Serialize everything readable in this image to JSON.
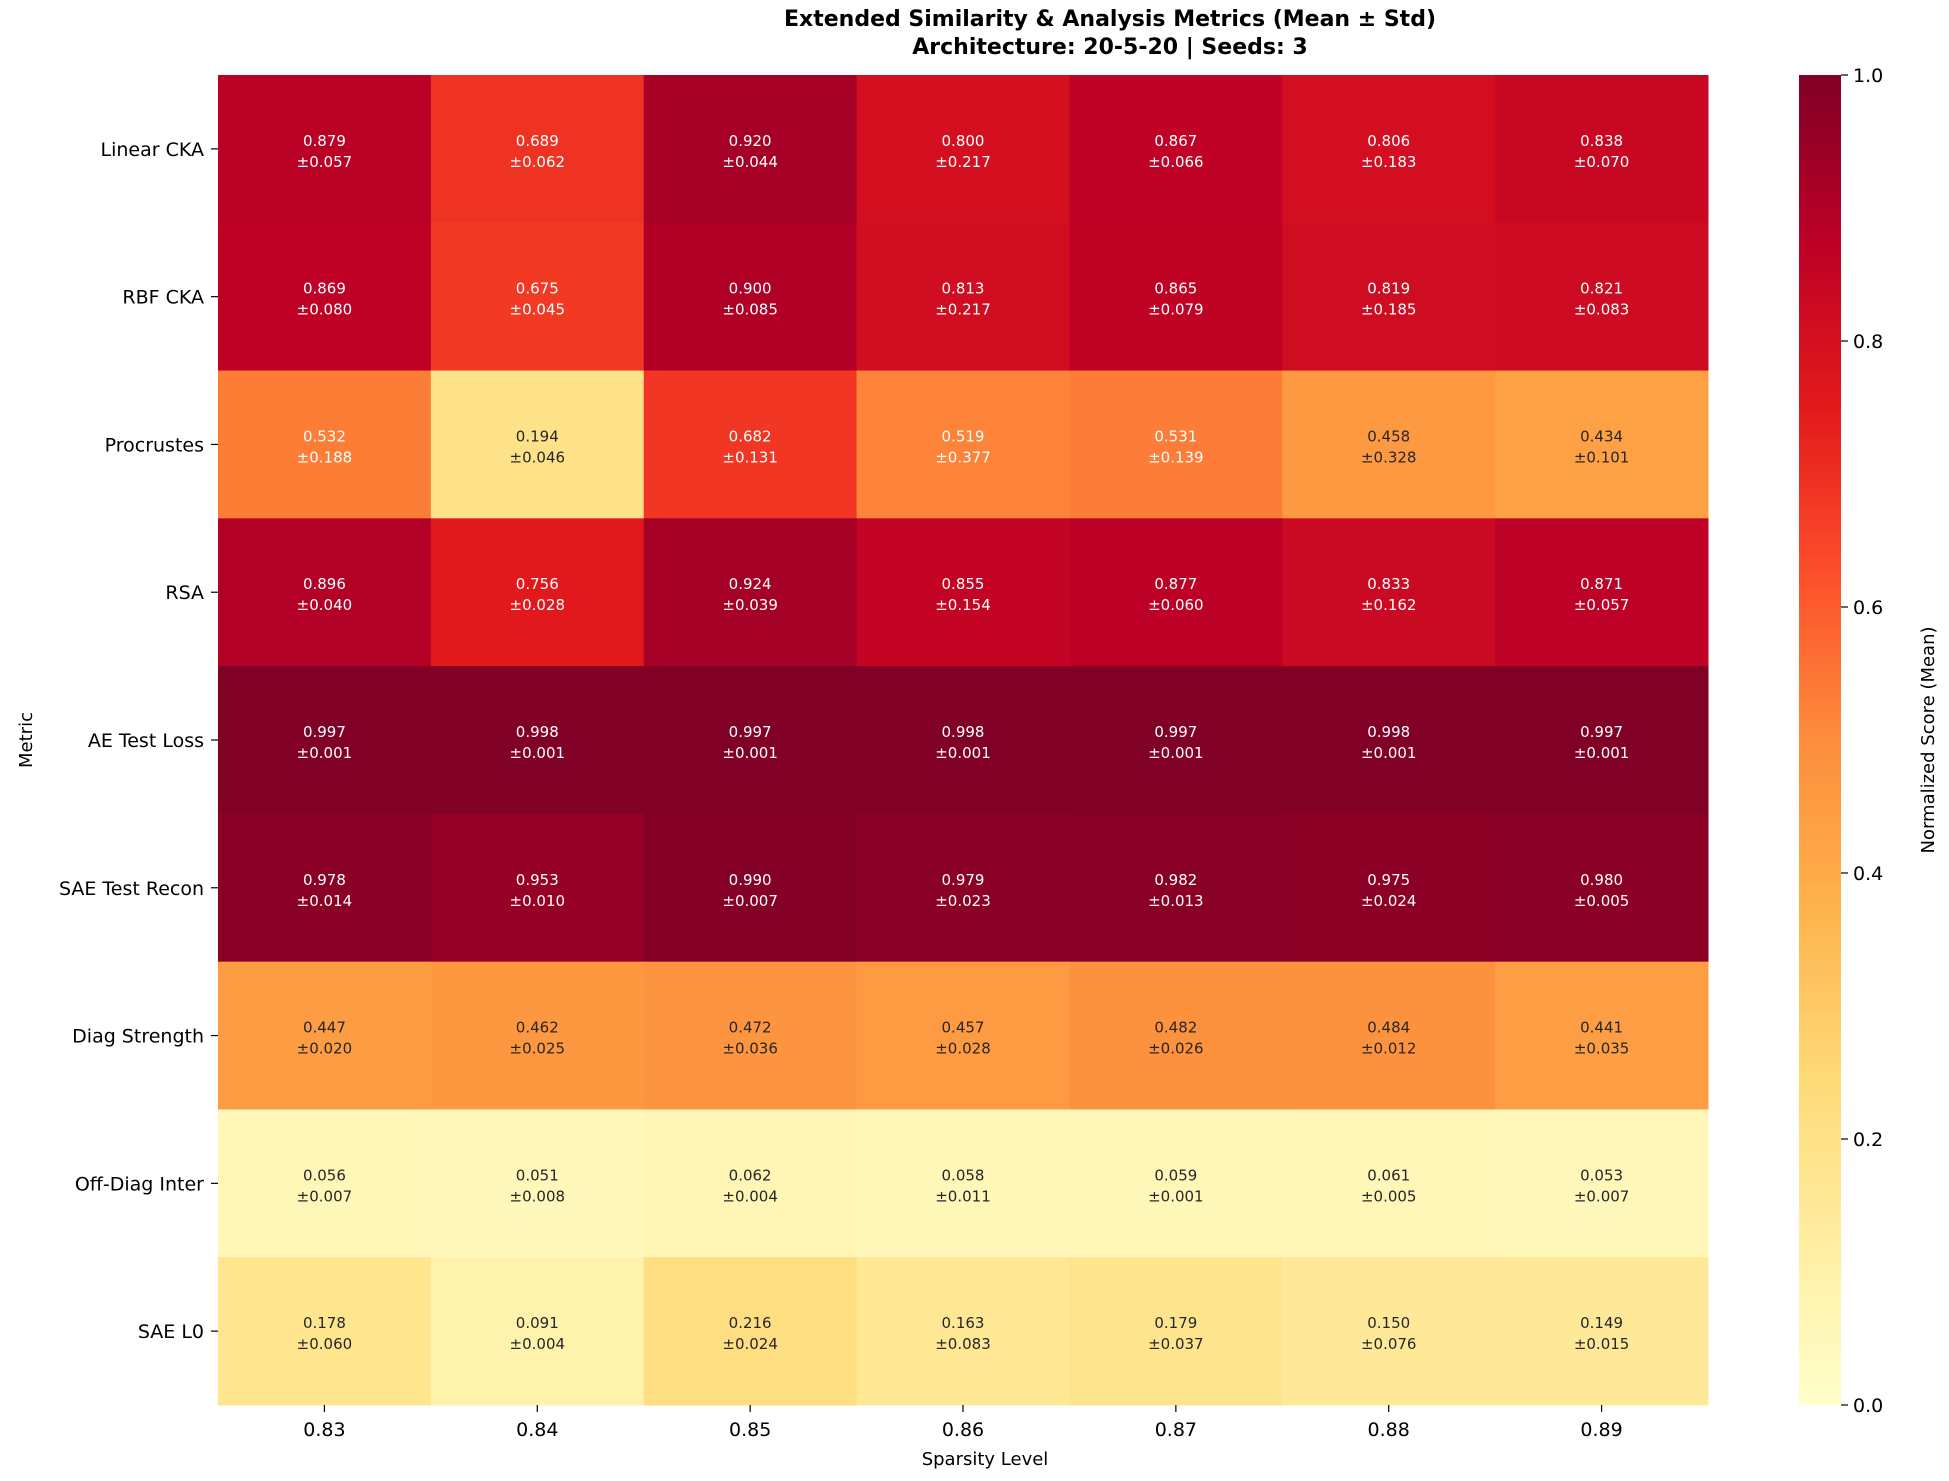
{
  "chart_data": {
    "type": "heatmap",
    "title": "Extended Similarity & Analysis Metrics (Mean ± Std)",
    "subtitle": "Architecture: 20-5-20 | Seeds: 3",
    "xlabel": "Sparsity Level",
    "ylabel": "Metric",
    "x_categories": [
      "0.83",
      "0.84",
      "0.85",
      "0.86",
      "0.87",
      "0.88",
      "0.89"
    ],
    "y_categories": [
      "Linear CKA",
      "RBF CKA",
      "Procrustes",
      "RSA",
      "AE Test Loss",
      "SAE Test Recon",
      "Diag Strength",
      "Off-Diag Inter",
      "SAE L0"
    ],
    "values": [
      [
        0.879,
        0.689,
        0.92,
        0.8,
        0.867,
        0.806,
        0.838
      ],
      [
        0.869,
        0.675,
        0.9,
        0.813,
        0.865,
        0.819,
        0.821
      ],
      [
        0.532,
        0.194,
        0.682,
        0.519,
        0.531,
        0.458,
        0.434
      ],
      [
        0.896,
        0.756,
        0.924,
        0.855,
        0.877,
        0.833,
        0.871
      ],
      [
        0.997,
        0.998,
        0.997,
        0.998,
        0.997,
        0.998,
        0.997
      ],
      [
        0.978,
        0.953,
        0.99,
        0.979,
        0.982,
        0.975,
        0.98
      ],
      [
        0.447,
        0.462,
        0.472,
        0.457,
        0.482,
        0.484,
        0.441
      ],
      [
        0.056,
        0.051,
        0.062,
        0.058,
        0.059,
        0.061,
        0.053
      ],
      [
        0.178,
        0.091,
        0.216,
        0.163,
        0.179,
        0.15,
        0.149
      ]
    ],
    "cell_labels": [
      [
        [
          "0.879",
          "±0.057"
        ],
        [
          "0.689",
          "±0.062"
        ],
        [
          "0.920",
          "±0.044"
        ],
        [
          "0.800",
          "±0.217"
        ],
        [
          "0.867",
          "±0.066"
        ],
        [
          "0.806",
          "±0.183"
        ],
        [
          "0.838",
          "±0.070"
        ]
      ],
      [
        [
          "0.869",
          "±0.080"
        ],
        [
          "0.675",
          "±0.045"
        ],
        [
          "0.900",
          "±0.085"
        ],
        [
          "0.813",
          "±0.217"
        ],
        [
          "0.865",
          "±0.079"
        ],
        [
          "0.819",
          "±0.185"
        ],
        [
          "0.821",
          "±0.083"
        ]
      ],
      [
        [
          "0.532",
          "±0.188"
        ],
        [
          "0.194",
          "±0.046"
        ],
        [
          "0.682",
          "±0.131"
        ],
        [
          "0.519",
          "±0.377"
        ],
        [
          "0.531",
          "±0.139"
        ],
        [
          "0.458",
          "±0.328"
        ],
        [
          "0.434",
          "±0.101"
        ]
      ],
      [
        [
          "0.896",
          "±0.040"
        ],
        [
          "0.756",
          "±0.028"
        ],
        [
          "0.924",
          "±0.039"
        ],
        [
          "0.855",
          "±0.154"
        ],
        [
          "0.877",
          "±0.060"
        ],
        [
          "0.833",
          "±0.162"
        ],
        [
          "0.871",
          "±0.057"
        ]
      ],
      [
        [
          "0.997",
          "±0.001"
        ],
        [
          "0.998",
          "±0.001"
        ],
        [
          "0.997",
          "±0.001"
        ],
        [
          "0.998",
          "±0.001"
        ],
        [
          "0.997",
          "±0.001"
        ],
        [
          "0.998",
          "±0.001"
        ],
        [
          "0.997",
          "±0.001"
        ]
      ],
      [
        [
          "0.978",
          "±0.014"
        ],
        [
          "0.953",
          "±0.010"
        ],
        [
          "0.990",
          "±0.007"
        ],
        [
          "0.979",
          "±0.023"
        ],
        [
          "0.982",
          "±0.013"
        ],
        [
          "0.975",
          "±0.024"
        ],
        [
          "0.980",
          "±0.005"
        ]
      ],
      [
        [
          "0.447",
          "±0.020"
        ],
        [
          "0.462",
          "±0.025"
        ],
        [
          "0.472",
          "±0.036"
        ],
        [
          "0.457",
          "±0.028"
        ],
        [
          "0.482",
          "±0.026"
        ],
        [
          "0.484",
          "±0.012"
        ],
        [
          "0.441",
          "±0.035"
        ]
      ],
      [
        [
          "0.056",
          "±0.007"
        ],
        [
          "0.051",
          "±0.008"
        ],
        [
          "0.062",
          "±0.004"
        ],
        [
          "0.058",
          "±0.011"
        ],
        [
          "0.059",
          "±0.001"
        ],
        [
          "0.061",
          "±0.005"
        ],
        [
          "0.053",
          "±0.007"
        ]
      ],
      [
        [
          "0.178",
          "±0.060"
        ],
        [
          "0.091",
          "±0.004"
        ],
        [
          "0.216",
          "±0.024"
        ],
        [
          "0.163",
          "±0.083"
        ],
        [
          "0.179",
          "±0.037"
        ],
        [
          "0.150",
          "±0.076"
        ],
        [
          "0.149",
          "±0.015"
        ]
      ]
    ],
    "colorbar": {
      "label": "Normalized Score (Mean)",
      "range": [
        0,
        1
      ],
      "ticks": [
        "0.0",
        "0.2",
        "0.4",
        "0.6",
        "0.8",
        "1.0"
      ],
      "colormap": "YlOrRd",
      "colors": [
        "#ffffcc",
        "#ffeda0",
        "#fed976",
        "#feb24c",
        "#fd8d3c",
        "#fc4e2a",
        "#e31a1c",
        "#bd0026",
        "#800026"
      ]
    }
  }
}
